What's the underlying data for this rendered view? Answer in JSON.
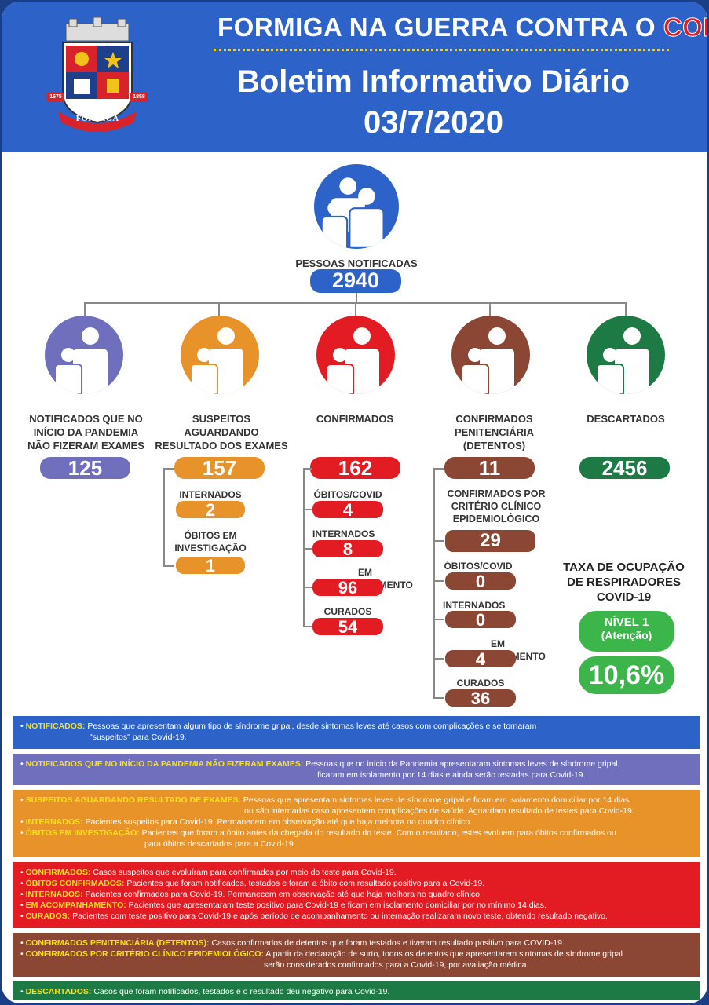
{
  "header": {
    "supertitle_a": "FORMIGA NA GUERRA CONTRA O",
    "supertitle_b": "CORONAVÍRUS",
    "title": "Boletim Informativo Diário",
    "date": "03/7/2020",
    "crest": {
      "year_left": "1675",
      "year_right": "1858",
      "name": "FORMIGA"
    }
  },
  "colors": {
    "blue": "#2d62c9",
    "purple": "#6f6fbd",
    "orange": "#e8922a",
    "red": "#e31b23",
    "brown": "#8b4634",
    "green": "#1e7a44",
    "lightgreen": "#3cb54a"
  },
  "top": {
    "label": "PESSOAS NOTIFICADAS",
    "value": "2940"
  },
  "cols": {
    "nf": {
      "label": "NOTIFICADOS QUE NO INÍCIO DA PANDEMIA NÃO FIZERAM EXAMES",
      "value": "125"
    },
    "susp": {
      "label": "SUSPEITOS AGUARDANDO RESULTADO DOS EXAMES",
      "value": "157",
      "internados_label": "INTERNADOS",
      "internados": "2",
      "obitos_label": "ÓBITOS EM INVESTIGAÇÃO",
      "obitos": "1"
    },
    "conf": {
      "label": "CONFIRMADOS",
      "value": "162",
      "obitos_label": "ÓBITOS/COVID",
      "obitos": "4",
      "internados_label": "INTERNADOS",
      "internados": "8",
      "acomp_label": "EM ACOMPANHAMENTO",
      "acomp": "96",
      "curados_label": "CURADOS",
      "curados": "54"
    },
    "pen": {
      "label": "CONFIRMADOS PENITENCIÁRIA (DETENTOS)",
      "value": "11",
      "crit_label": "CONFIRMADOS POR CRITÉRIO CLÍNICO EPIDEMIOLÓGICO",
      "crit": "29",
      "obitos_label": "ÓBITOS/COVID",
      "obitos": "0",
      "internados_label": "INTERNADOS",
      "internados": "0",
      "acomp_label": "EM ACOMPANHAMENTO",
      "acomp": "4",
      "curados_label": "CURADOS",
      "curados": "36"
    },
    "desc": {
      "label": "DESCARTADOS",
      "value": "2456"
    }
  },
  "resp": {
    "title": "TAXA DE OCUPAÇÃO DE RESPIRADORES COVID-19",
    "level": "NÍVEL 1",
    "level_sub": "(Atenção)",
    "value": "10,6%"
  },
  "legend": {
    "notificados_k": "NOTIFICADOS:",
    "notificados_v1": "Pessoas que apresentam algum tipo de síndrome gripal, desde sintomas leves até casos com complicações e se tornaram",
    "notificados_v2": "\"suspeitos\" para Covid-19.",
    "nf_k": "NOTIFICADOS QUE NO INÍCIO DA PANDEMIA NÃO FIZERAM EXAMES:",
    "nf_v1": "Pessoas que no início da Pandemia apresentaram sintomas leves de síndrome gripal,",
    "nf_v2": "ficaram em isolamento por 14 dias e ainda serão testadas para Covid-19.",
    "susp_k": "SUSPEITOS AGUARDANDO RESULTADO DE EXAMES:",
    "susp_v1": "Pessoas que apresentam sintomas leves de síndrome gripal e ficam em isolamento domiciliar por 14 dias",
    "susp_v2": "ou são internadas caso apresentem complicações de saúde. Aguardam resultado de testes para Covid-19. .",
    "int_k": "INTERNADOS:",
    "int_v": "Pacientes suspeitos para Covid-19. Permanecem em observação até que haja melhora no quadro clínico.",
    "obinv_k": "ÓBITOS EM INVESTIGAÇÃO:",
    "obinv_v1": "Pacientes que foram a óbito antes da chegada do resultado do teste. Com o resultado, estes evoluem para óbitos confirmados ou",
    "obinv_v2": "para óbitos descartados para a Covid-19.",
    "conf_k": "CONFIRMADOS:",
    "conf_v": "Casos suspeitos que evoluíram para confirmados por meio do teste para Covid-19.",
    "obconf_k": "ÓBITOS CONFIRMADOS:",
    "obconf_v": "Pacientes que foram notificados, testados e foram a óbito com resultado positivo para a Covid-19.",
    "int2_k": "INTERNADOS:",
    "int2_v": "Pacientes confirmados para Covid-19. Permanecem em observação até que haja melhora no quadro clínico.",
    "acomp_k": "EM ACOMPANHAMENTO:",
    "acomp_v": "Pacientes que apresentaram teste positivo para Covid-19 e ficam em isolamento domiciliar por no mínimo 14 dias.",
    "cur_k": "CURADOS:",
    "cur_v": "Pacientes com teste positivo para Covid-19 e após período de acompanhamento ou internação realizaram novo teste, obtendo resultado negativo.",
    "pen_k": "CONFIRMADOS PENITENCIÁRIA (DETENTOS):",
    "pen_v": "Casos confirmados de detentos que foram testados e tiveram resultado positivo para COVID-19.",
    "crit_k": "CONFIRMADOS POR CRITÉRIO CLÍNICO EPIDEMIOLÓGICO:",
    "crit_v1": "A partir da declaração de surto, todos os detentos que apresentarem sintomas de síndrome gripal",
    "crit_v2": "serão considerados confirmados para a Covid-19, por avaliação médica.",
    "desc_k": "DESCARTADOS:",
    "desc_v": "Casos que foram notificados, testados e o resultado deu negativo para Covid-19."
  }
}
